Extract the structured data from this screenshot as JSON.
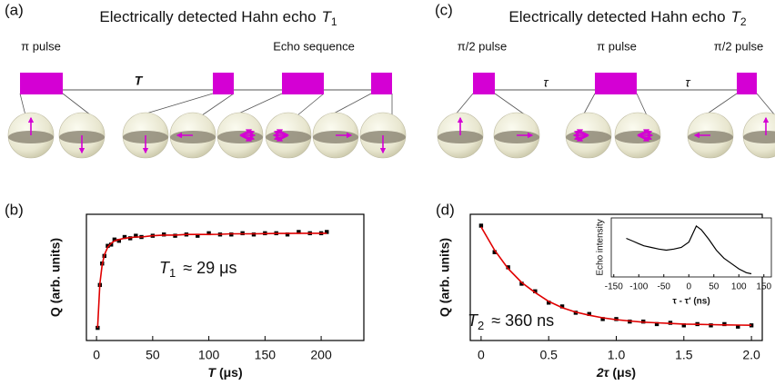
{
  "diagrams": [
    {
      "panel_label": "(a)",
      "title": {
        "text": "Electrically detected Hahn echo",
        "symbol": "T",
        "subscript": "1"
      },
      "pulse_labels": [
        "π pulse",
        "Echo sequence"
      ],
      "delay_labels": [
        "T"
      ]
    },
    {
      "panel_label": "(c)",
      "title": {
        "text": "Electrically detected Hahn echo",
        "symbol": "T",
        "subscript": "2"
      },
      "pulse_labels": [
        "π/2 pulse",
        "π pulse",
        "π/2 pulse"
      ],
      "delay_labels": [
        "τ",
        "τ"
      ]
    }
  ],
  "chart_data": [
    {
      "type": "scatter",
      "panel_label": "(b)",
      "x_label": {
        "symbol": "T",
        "unit": "(μs)"
      },
      "y_label": "Q (arb. units)",
      "annotation": {
        "symbol": "T",
        "subscript": "1",
        "text": "≈ 29 μs"
      },
      "xlim": [
        -9,
        238
      ],
      "ylim": [
        0,
        1
      ],
      "xticks": [
        0,
        50,
        100,
        150,
        200
      ],
      "yticks": [],
      "x": [
        1,
        3,
        5,
        7,
        10,
        13,
        16,
        20,
        25,
        30,
        35,
        40,
        50,
        60,
        70,
        80,
        90,
        100,
        110,
        120,
        130,
        140,
        150,
        160,
        170,
        180,
        190,
        200,
        205
      ],
      "series": [
        {
          "type": "scatter",
          "color": "#000000",
          "values": [
            0.1,
            0.44,
            0.61,
            0.67,
            0.75,
            0.76,
            0.8,
            0.79,
            0.82,
            0.81,
            0.83,
            0.82,
            0.83,
            0.84,
            0.83,
            0.84,
            0.83,
            0.85,
            0.84,
            0.84,
            0.85,
            0.84,
            0.85,
            0.85,
            0.84,
            0.86,
            0.85,
            0.85,
            0.86
          ]
        },
        {
          "type": "line",
          "color": "#e00000",
          "values": [
            0.1,
            0.45,
            0.6,
            0.68,
            0.74,
            0.77,
            0.79,
            0.8,
            0.81,
            0.815,
            0.82,
            0.82,
            0.83,
            0.835,
            0.835,
            0.84,
            0.84,
            0.84,
            0.842,
            0.845,
            0.845,
            0.845,
            0.847,
            0.848,
            0.848,
            0.85,
            0.85,
            0.85,
            0.85
          ]
        }
      ]
    },
    {
      "type": "scatter",
      "panel_label": "(d)",
      "x_label": {
        "symbol": "2τ",
        "unit": "(μs)"
      },
      "y_label": "Q (arb. units)",
      "annotation": {
        "symbol": "T",
        "subscript": "2",
        "text": "≈ 360 ns"
      },
      "xlim": [
        -0.08,
        2.08
      ],
      "ylim": [
        0,
        1
      ],
      "xticks": [
        0,
        0.5,
        {
          "value": 1,
          "label": "1.0"
        },
        1.5,
        {
          "value": 2,
          "label": "2.0"
        }
      ],
      "yticks": [],
      "x": [
        0,
        0.1,
        0.2,
        0.3,
        0.4,
        0.5,
        0.6,
        0.7,
        0.8,
        0.9,
        1,
        1.1,
        1.2,
        1.3,
        1.4,
        1.5,
        1.6,
        1.7,
        1.8,
        1.9,
        2
      ],
      "series": [
        {
          "type": "scatter",
          "color": "#000000",
          "values": [
            0.91,
            0.7,
            0.58,
            0.45,
            0.39,
            0.3,
            0.27,
            0.22,
            0.21,
            0.17,
            0.17,
            0.15,
            0.15,
            0.13,
            0.14,
            0.12,
            0.13,
            0.12,
            0.13,
            0.11,
            0.12
          ]
        },
        {
          "type": "line",
          "color": "#e00000",
          "values": [
            0.9,
            0.715,
            0.57,
            0.46,
            0.38,
            0.31,
            0.26,
            0.225,
            0.2,
            0.18,
            0.165,
            0.155,
            0.145,
            0.14,
            0.135,
            0.13,
            0.128,
            0.126,
            0.124,
            0.122,
            0.121
          ]
        }
      ]
    },
    {
      "type": "line",
      "x_label": "τ - τ′ (ns)",
      "y_label": "Echo intensity",
      "xlim": [
        -155,
        165
      ],
      "ylim": [
        0,
        1.1
      ],
      "xticks": [
        -150,
        -100,
        -50,
        0,
        50,
        100,
        150
      ],
      "yticks": [],
      "x": [
        -125,
        -110,
        -100,
        -90,
        -75,
        -60,
        -45,
        -30,
        -15,
        0,
        10,
        15,
        25,
        40,
        55,
        70,
        85,
        100,
        115,
        125
      ],
      "series": [
        {
          "type": "line",
          "color": "#000000",
          "values": [
            0.72,
            0.66,
            0.62,
            0.58,
            0.55,
            0.52,
            0.5,
            0.52,
            0.55,
            0.65,
            0.85,
            0.95,
            0.88,
            0.7,
            0.5,
            0.35,
            0.25,
            0.15,
            0.08,
            0.06
          ]
        }
      ]
    }
  ]
}
